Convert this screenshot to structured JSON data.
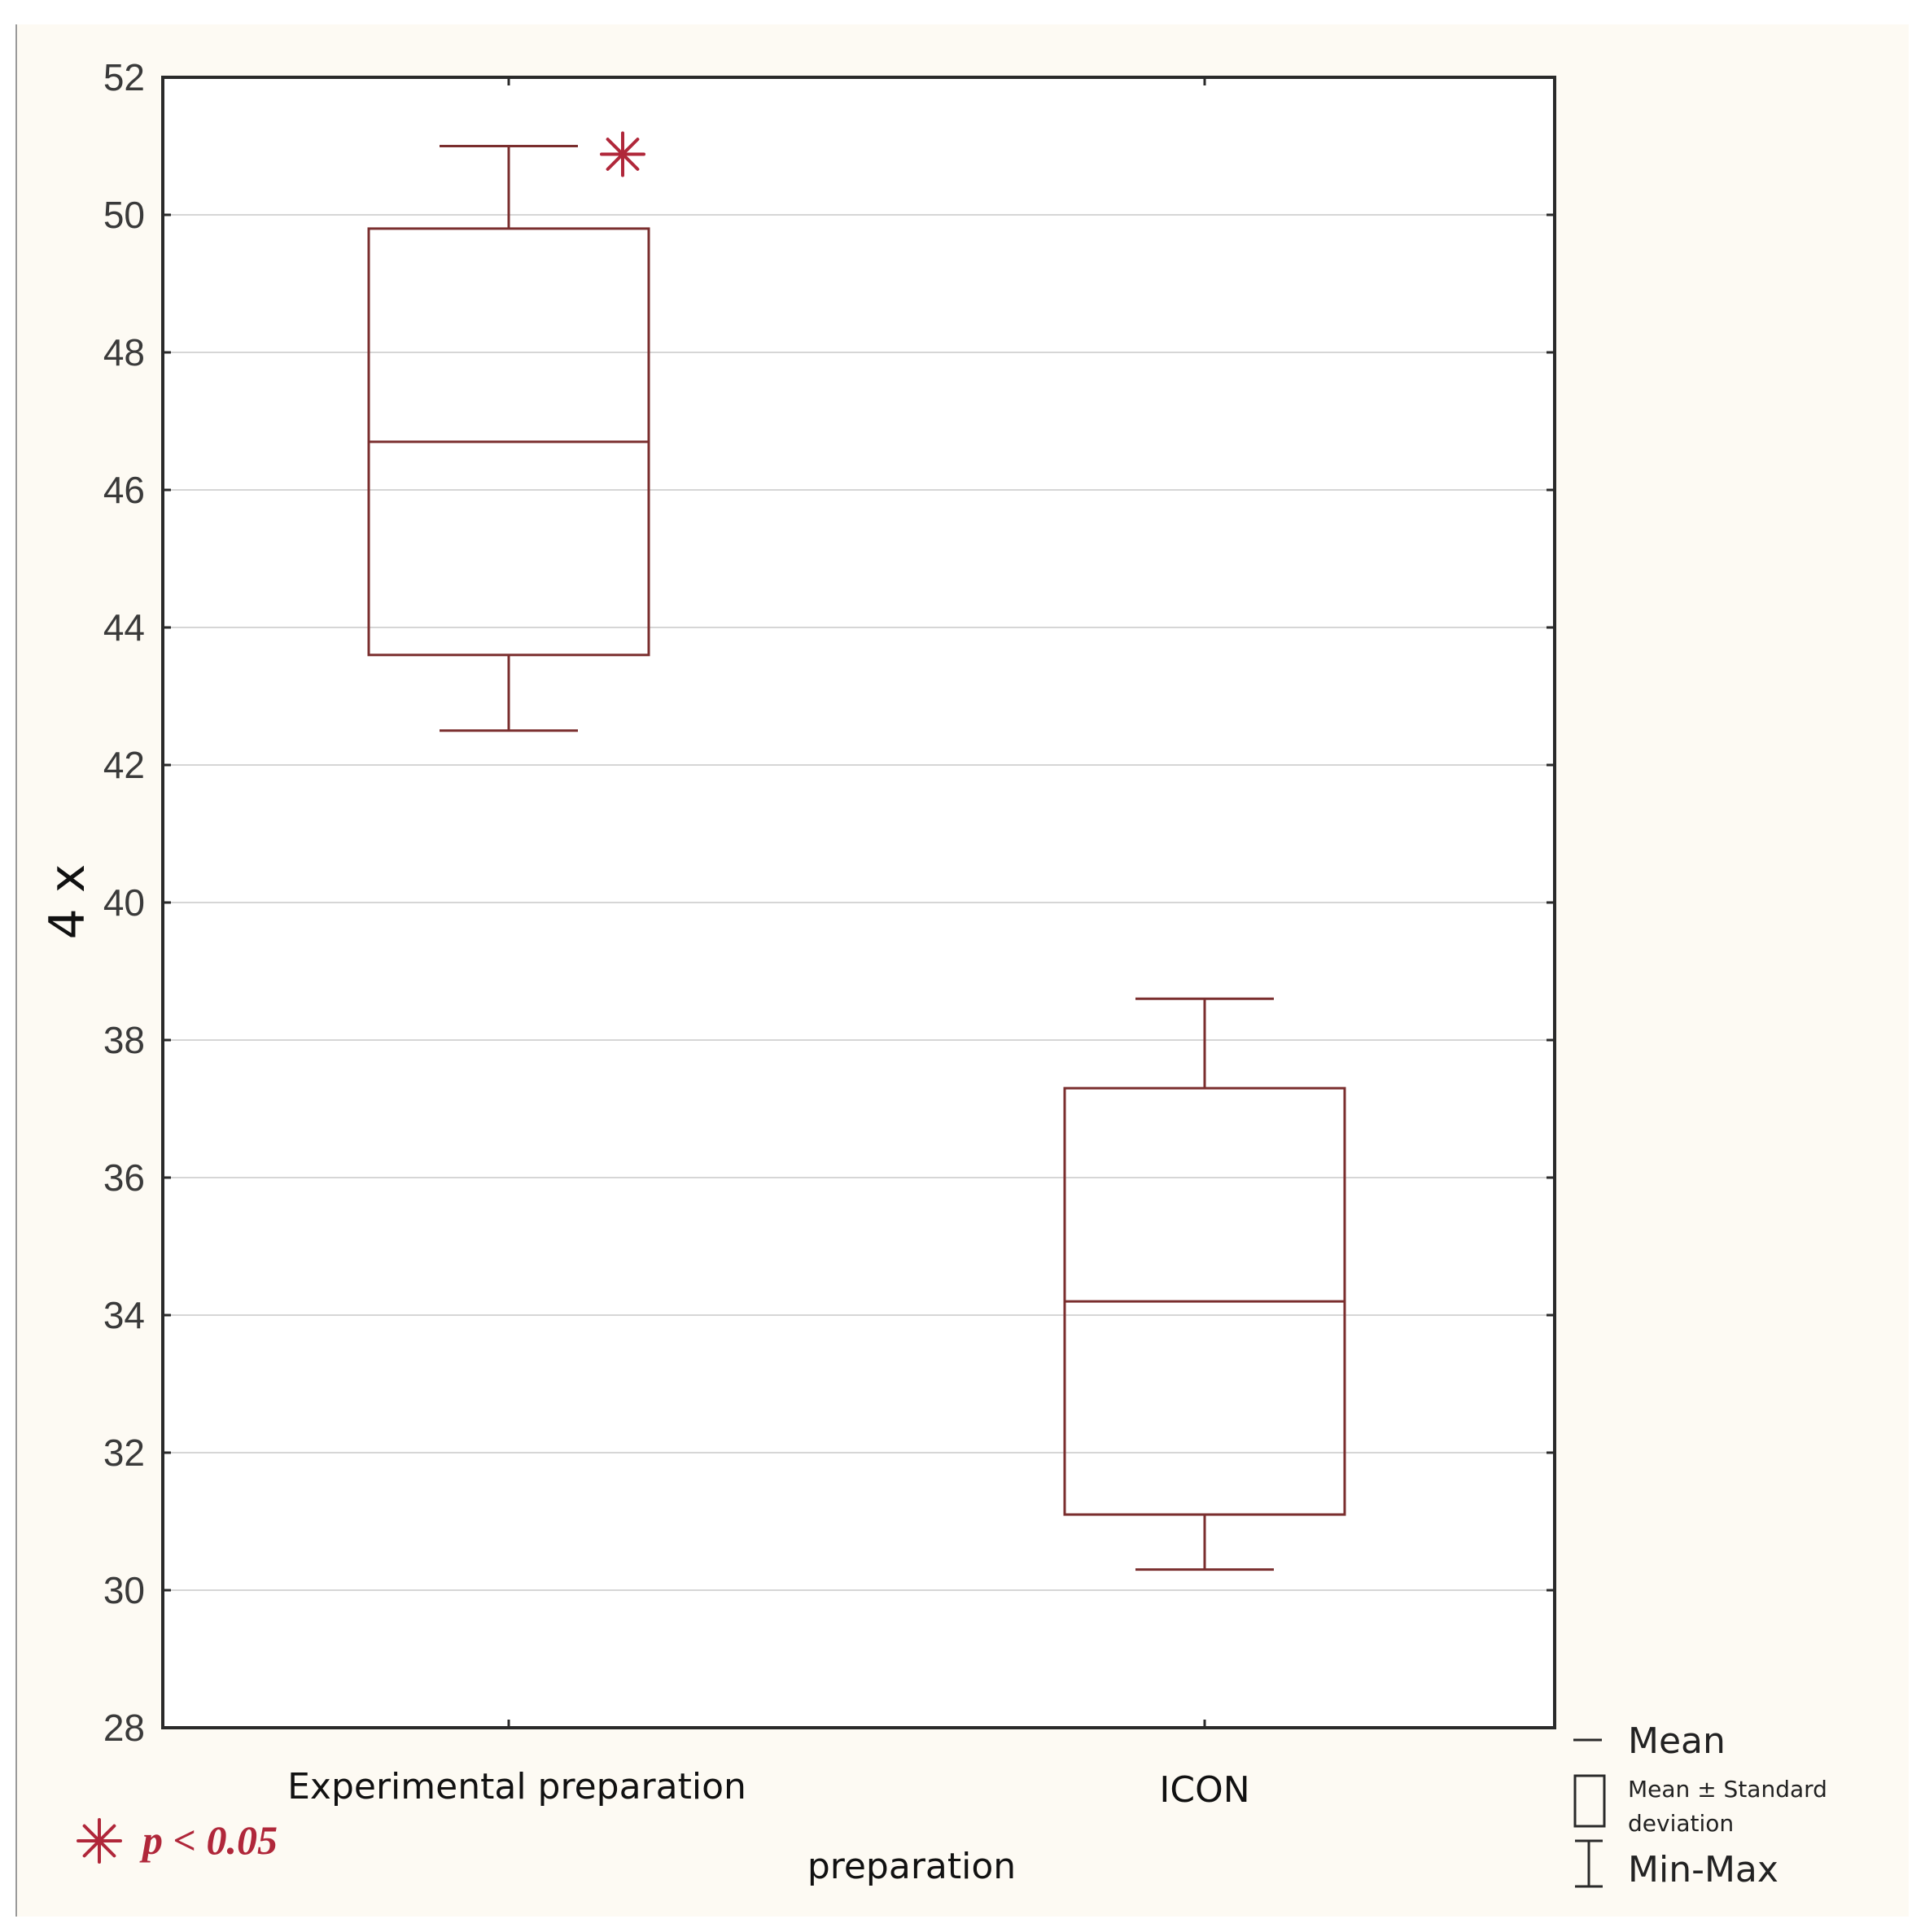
{
  "chart_data": {
    "type": "box",
    "ylabel": "4 x",
    "xlabel": "preparation",
    "ylim": [
      28,
      52
    ],
    "yticks": [
      28,
      30,
      32,
      34,
      36,
      38,
      40,
      42,
      44,
      46,
      48,
      50,
      52
    ],
    "grid": true,
    "categories": [
      "Experimental preparation",
      "ICON"
    ],
    "boxes": [
      {
        "category": "Experimental preparation",
        "min": 42.5,
        "mean_minus_sd": 43.6,
        "mean": 46.7,
        "mean_plus_sd": 49.8,
        "max": 51.0,
        "significant": true
      },
      {
        "category": "ICON",
        "min": 30.3,
        "mean_minus_sd": 31.1,
        "mean": 34.2,
        "mean_plus_sd": 37.3,
        "max": 38.6,
        "significant": false
      }
    ],
    "legend": {
      "position": "bottom-right",
      "items": [
        {
          "symbol": "line",
          "label": "Mean"
        },
        {
          "symbol": "box",
          "label_lines": [
            "Mean ± Standard",
            "deviation"
          ]
        },
        {
          "symbol": "whisker",
          "label": "Min-Max"
        }
      ]
    },
    "annotation": {
      "symbol": "asterisk",
      "text": "p < 0.05"
    },
    "colors": {
      "box": "#7a2e2e",
      "significance": "#b0273a",
      "grid": "#d6d6d6",
      "frame": "#2a2a2a",
      "background": "#fdfaf3"
    }
  }
}
